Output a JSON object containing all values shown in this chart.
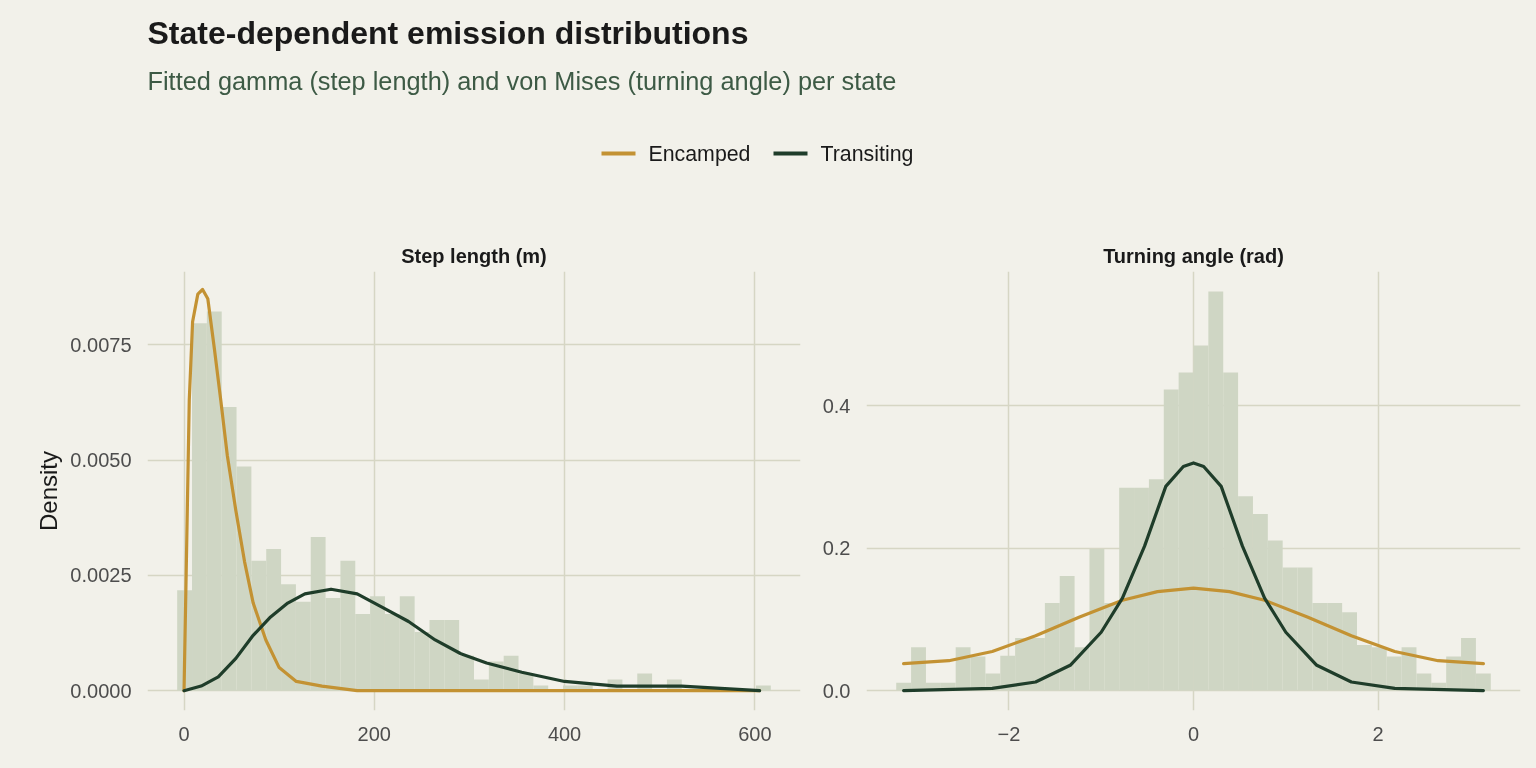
{
  "chart_data": [
    {
      "type": "histogram",
      "title": "State-dependent emission distributions",
      "subtitle": "Fitted gamma (step length) and von Mises (turning angle) per state",
      "xlabel": "Step length (m)",
      "ylabel": "Density",
      "legend": "top",
      "grid": true,
      "color": "#cfd6c4",
      "bins": [
        -7.2,
        8.4,
        24,
        39.6,
        55.2,
        70.8,
        86.4,
        102,
        117.6,
        133.2,
        148.8,
        164.4,
        180,
        195.6,
        211.2,
        226.8,
        242.4,
        258,
        273.6,
        289.2,
        304.8,
        320.4,
        336,
        351.6,
        367.2,
        382.8,
        398.4,
        414,
        429.6,
        445.2,
        460.8,
        476.4,
        492,
        507.6,
        523.2,
        538.8,
        554.4,
        570,
        585.6,
        601.2,
        616.8
      ],
      "values": [
        0.00218,
        0.00797,
        0.00822,
        0.00615,
        0.00486,
        0.00282,
        0.00307,
        0.00231,
        0.00193,
        0.00333,
        0.00201,
        0.00282,
        0.00166,
        0.00205,
        0.00166,
        0.00205,
        0.00127,
        0.00153,
        0.00153,
        0.00076,
        0.00024,
        0.00063,
        0.00076,
        0.00037,
        0.00011,
        0,
        0.00011,
        0.00011,
        0,
        0.00024,
        0,
        0.00037,
        0,
        0.00024,
        0,
        0,
        0,
        0,
        0,
        0.00011
      ],
      "series": [
        {
          "name": "Encamped",
          "type": "line",
          "color": "#c39233",
          "x": [
            0,
            2.3,
            5.5,
            9,
            14.5,
            19.5,
            25,
            32,
            38.6,
            45.5,
            54.5,
            63.6,
            72.7,
            86,
            100,
            118,
            145,
            182,
            273,
            605
          ],
          "values": [
            0,
            0.0026,
            0.0063,
            0.008,
            0.0086,
            0.0087,
            0.0085,
            0.0074,
            0.0063,
            0.0051,
            0.0039,
            0.0028,
            0.0019,
            0.0011,
            0.0005,
            0.0002,
            0.0001,
            0,
            0,
            0
          ]
        },
        {
          "name": "Transiting",
          "type": "line",
          "color": "#1f3d2a",
          "x": [
            0,
            18,
            36,
            54.5,
            72.7,
            91,
            109,
            127,
            154.5,
            182,
            209,
            236,
            264,
            291,
            318,
            355,
            400,
            455,
            523,
            605
          ],
          "values": [
            0,
            0.0001,
            0.0003,
            0.0007,
            0.0012,
            0.0016,
            0.0019,
            0.0021,
            0.0022,
            0.0021,
            0.0018,
            0.0015,
            0.0011,
            0.0008,
            0.0006,
            0.0004,
            0.0002,
            0.0001,
            0.0001,
            0
          ]
        }
      ],
      "xlim": [
        -38.4,
        648
      ],
      "ylim": [
        -0.00043,
        0.00909
      ],
      "xticks": [
        0,
        200,
        400,
        600
      ],
      "yticks": [
        {
          "value": 0,
          "label": "0.0000"
        },
        {
          "value": 0.0025,
          "label": "0.0025"
        },
        {
          "value": 0.005,
          "label": "0.0050"
        },
        {
          "value": 0.0075,
          "label": "0.0075"
        }
      ]
    },
    {
      "type": "histogram",
      "xlabel": "Turning angle (rad)",
      "grid": true,
      "color": "#cfd6c4",
      "bins": [
        -3.22,
        -3.059,
        -2.898,
        -2.737,
        -2.576,
        -2.415,
        -2.254,
        -2.093,
        -1.932,
        -1.771,
        -1.61,
        -1.449,
        -1.288,
        -1.127,
        -0.966,
        -0.805,
        -0.644,
        -0.483,
        -0.322,
        -0.161,
        0,
        0.161,
        0.322,
        0.483,
        0.644,
        0.805,
        0.966,
        1.127,
        1.288,
        1.449,
        1.61,
        1.771,
        1.932,
        2.093,
        2.254,
        2.415,
        2.576,
        2.737,
        2.898,
        3.059,
        3.22
      ],
      "values": [
        0.011,
        0.061,
        0.011,
        0.011,
        0.061,
        0.048,
        0.024,
        0.049,
        0.074,
        0.074,
        0.123,
        0.161,
        0.061,
        0.199,
        0.123,
        0.285,
        0.285,
        0.297,
        0.423,
        0.447,
        0.485,
        0.561,
        0.447,
        0.273,
        0.248,
        0.211,
        0.173,
        0.173,
        0.123,
        0.123,
        0.11,
        0.064,
        0.061,
        0.048,
        0.061,
        0.024,
        0.011,
        0.048,
        0.074,
        0.024
      ],
      "series": [
        {
          "type": "line",
          "color": "#c39233",
          "x": [
            -3.14,
            -2.65,
            -2.18,
            -1.71,
            -1.24,
            -0.77,
            -0.39,
            0,
            0.39,
            0.77,
            1.24,
            1.71,
            2.18,
            2.65,
            3.14
          ],
          "values": [
            0.038,
            0.042,
            0.055,
            0.077,
            0.103,
            0.127,
            0.139,
            0.144,
            0.139,
            0.127,
            0.103,
            0.077,
            0.055,
            0.042,
            0.038
          ]
        },
        {
          "type": "line",
          "color": "#1f3d2a",
          "x": [
            -3.14,
            -2.18,
            -1.71,
            -1.33,
            -1,
            -0.77,
            -0.53,
            -0.3,
            -0.11,
            0,
            0.11,
            0.3,
            0.53,
            0.77,
            1,
            1.33,
            1.71,
            2.18,
            3.14
          ],
          "values": [
            0,
            0.003,
            0.012,
            0.036,
            0.082,
            0.13,
            0.203,
            0.287,
            0.315,
            0.32,
            0.315,
            0.287,
            0.203,
            0.13,
            0.082,
            0.036,
            0.012,
            0.003,
            0
          ]
        }
      ],
      "xlim": [
        -3.542,
        3.542
      ],
      "ylim": [
        -0.028,
        0.589
      ],
      "xticks": [
        -2,
        0,
        2
      ],
      "yticks": [
        {
          "value": 0,
          "label": "0.0"
        },
        {
          "value": 0.2,
          "label": "0.2"
        },
        {
          "value": 0.4,
          "label": "0.4"
        }
      ]
    }
  ]
}
